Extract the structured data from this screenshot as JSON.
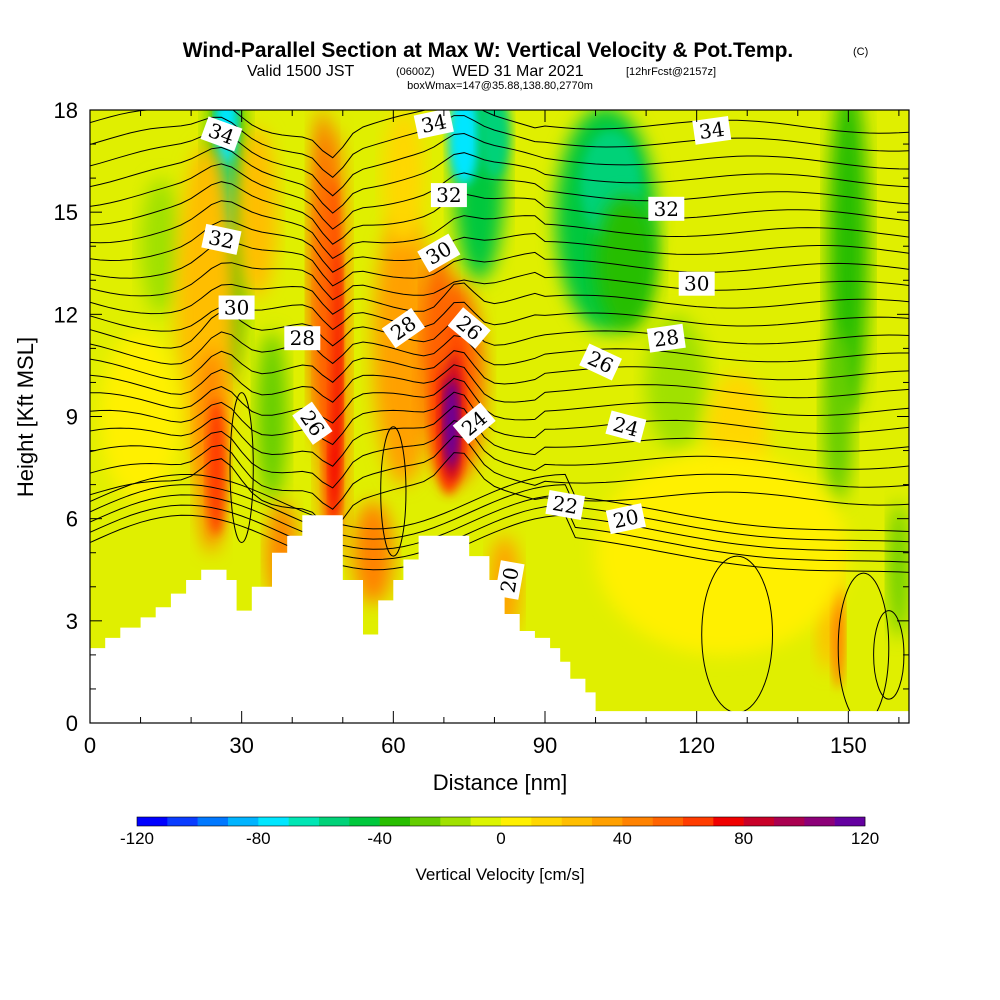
{
  "chart_data": {
    "type": "heatmap",
    "title": "Wind-Parallel Section at Max W: Vertical Velocity & Pot.Temp.",
    "title_mark": "(C)",
    "subtitle": {
      "valid": "Valid 1500 JST",
      "utc": "(0600Z)",
      "date": "WED 31 Mar 2021",
      "forecast": "[12hrFcst@2157z]"
    },
    "info_line": "boxWmax=147@35.88,138.80,2770m",
    "xlabel": "Distance [nm]",
    "ylabel": "Height [Kft MSL]",
    "xlim": [
      0,
      162
    ],
    "ylim": [
      0,
      18
    ],
    "x_ticks": [
      0,
      30,
      60,
      90,
      120,
      150
    ],
    "y_ticks": [
      0,
      3,
      6,
      9,
      12,
      15,
      18
    ],
    "colorbar": {
      "label": "Vertical Velocity [cm/s]",
      "range": [
        -120,
        120
      ],
      "step": 10,
      "tick_labels": [
        "-120",
        "-80",
        "-40",
        "0",
        "40",
        "80",
        "120"
      ],
      "colors": [
        "#0000ff",
        "#0a3cff",
        "#0078ff",
        "#00b4ff",
        "#00e6ff",
        "#00e6b4",
        "#00d278",
        "#00c83c",
        "#28be00",
        "#64cd00",
        "#a0e100",
        "#dcf500",
        "#fff000",
        "#ffd700",
        "#ffbe00",
        "#ffa000",
        "#ff8200",
        "#ff6400",
        "#ff3c00",
        "#f00000",
        "#c80028",
        "#aa0050",
        "#8c0078",
        "#6400a0"
      ]
    },
    "contour_labels": [
      {
        "text": "34",
        "x": 26,
        "y": 17.3
      },
      {
        "text": "34",
        "x": 68,
        "y": 17.6
      },
      {
        "text": "34",
        "x": 123,
        "y": 17.4
      },
      {
        "text": "32",
        "x": 26,
        "y": 14.2
      },
      {
        "text": "32",
        "x": 71,
        "y": 15.5
      },
      {
        "text": "32",
        "x": 114,
        "y": 15.1
      },
      {
        "text": "30",
        "x": 29,
        "y": 12.2
      },
      {
        "text": "30",
        "x": 69,
        "y": 13.8
      },
      {
        "text": "30",
        "x": 120,
        "y": 12.9
      },
      {
        "text": "28",
        "x": 42,
        "y": 11.3
      },
      {
        "text": "28",
        "x": 62,
        "y": 11.6
      },
      {
        "text": "28",
        "x": 114,
        "y": 11.3
      },
      {
        "text": "26",
        "x": 44,
        "y": 8.8
      },
      {
        "text": "26",
        "x": 75,
        "y": 11.6
      },
      {
        "text": "26",
        "x": 101,
        "y": 10.6
      },
      {
        "text": "24",
        "x": 76,
        "y": 8.8
      },
      {
        "text": "24",
        "x": 106,
        "y": 8.7
      },
      {
        "text": "22",
        "x": 94,
        "y": 6.4
      },
      {
        "text": "20",
        "x": 106,
        "y": 6.0
      },
      {
        "text": "20",
        "x": 83,
        "y": 4.2
      }
    ],
    "terrain_profile_kft": [
      [
        0,
        2.2
      ],
      [
        3,
        2.5
      ],
      [
        6,
        2.8
      ],
      [
        10,
        3.1
      ],
      [
        13,
        3.4
      ],
      [
        16,
        3.8
      ],
      [
        19,
        4.2
      ],
      [
        22,
        4.5
      ],
      [
        25,
        4.5
      ],
      [
        27,
        4.2
      ],
      [
        29,
        3.3
      ],
      [
        32,
        4.0
      ],
      [
        36,
        5.0
      ],
      [
        39,
        5.5
      ],
      [
        42,
        6.1
      ],
      [
        45,
        6.1
      ],
      [
        48,
        6.1
      ],
      [
        50,
        4.2
      ],
      [
        52,
        4.2
      ],
      [
        54,
        2.6
      ],
      [
        57,
        3.6
      ],
      [
        60,
        4.2
      ],
      [
        62,
        4.8
      ],
      [
        65,
        5.5
      ],
      [
        69,
        5.5
      ],
      [
        72,
        5.5
      ],
      [
        75,
        4.9
      ],
      [
        79,
        4.2
      ],
      [
        82,
        3.2
      ],
      [
        85,
        2.7
      ],
      [
        88,
        2.5
      ],
      [
        91,
        2.2
      ],
      [
        93,
        1.8
      ],
      [
        95,
        1.3
      ],
      [
        98,
        0.9
      ],
      [
        100,
        0.35
      ],
      [
        162,
        0.35
      ]
    ]
  }
}
